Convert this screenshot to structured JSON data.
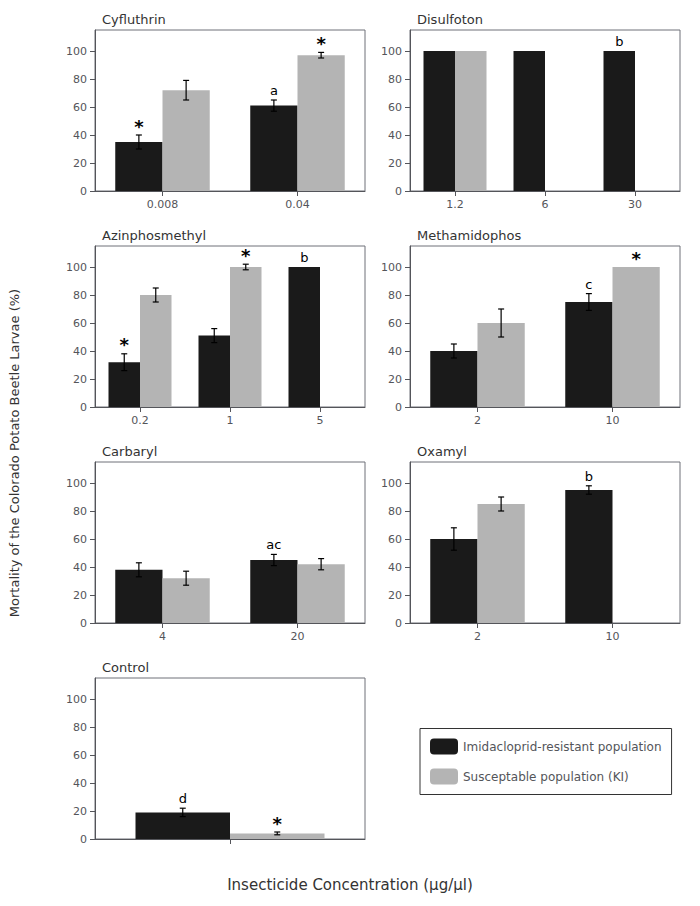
{
  "chart_data": [
    {
      "type": "bar",
      "title": "Cyfluthrin",
      "categories": [
        "0.008",
        "0.04"
      ],
      "series": [
        {
          "name": "Imidacloprid-resistant population",
          "color": "#1a1a1a",
          "values": [
            35,
            61
          ],
          "errors": [
            5,
            4
          ]
        },
        {
          "name": "Susceptable population (KI)",
          "color": "#b4b4b4",
          "values": [
            72,
            97
          ],
          "errors": [
            7,
            2
          ]
        }
      ],
      "annotations": [
        {
          "text": "*",
          "category": "0.008",
          "series": "Imidacloprid-resistant population"
        },
        {
          "text": "*",
          "category": "0.04",
          "series": "Susceptable population (KI)"
        },
        {
          "text": "a",
          "category": "0.04",
          "series": "Imidacloprid-resistant population"
        }
      ],
      "ylim": [
        0,
        115
      ],
      "yticks": [
        0,
        20,
        40,
        60,
        80,
        100
      ],
      "grid": false
    },
    {
      "type": "bar",
      "title": "Disulfoton",
      "categories": [
        "1.2",
        "6",
        "30"
      ],
      "series": [
        {
          "name": "Imidacloprid-resistant population",
          "color": "#1a1a1a",
          "values": [
            100,
            100,
            100
          ],
          "errors": [
            0,
            0,
            0
          ]
        },
        {
          "name": "Susceptable population (KI)",
          "color": "#b4b4b4",
          "values": [
            100,
            null,
            null
          ],
          "errors": [
            0,
            null,
            null
          ]
        }
      ],
      "annotations": [
        {
          "text": "b",
          "category": "30",
          "series": "Imidacloprid-resistant population"
        }
      ],
      "ylim": [
        0,
        115
      ],
      "yticks": [
        0,
        20,
        40,
        60,
        80,
        100
      ],
      "grid": false
    },
    {
      "type": "bar",
      "title": "Azinphosmethyl",
      "categories": [
        "0.2",
        "1",
        "5"
      ],
      "series": [
        {
          "name": "Imidacloprid-resistant population",
          "color": "#1a1a1a",
          "values": [
            32,
            51,
            100
          ],
          "errors": [
            6,
            5,
            0
          ]
        },
        {
          "name": "Susceptable population (KI)",
          "color": "#b4b4b4",
          "values": [
            80,
            100,
            null
          ],
          "errors": [
            5,
            2,
            null
          ]
        }
      ],
      "annotations": [
        {
          "text": "*",
          "category": "0.2",
          "series": "Imidacloprid-resistant population"
        },
        {
          "text": "*",
          "category": "1",
          "series": "Susceptable population (KI)"
        },
        {
          "text": "b",
          "category": "5",
          "series": "Imidacloprid-resistant population"
        }
      ],
      "ylim": [
        0,
        115
      ],
      "yticks": [
        0,
        20,
        40,
        60,
        80,
        100
      ],
      "grid": false
    },
    {
      "type": "bar",
      "title": "Methamidophos",
      "categories": [
        "2",
        "10"
      ],
      "series": [
        {
          "name": "Imidacloprid-resistant population",
          "color": "#1a1a1a",
          "values": [
            40,
            75
          ],
          "errors": [
            5,
            6
          ]
        },
        {
          "name": "Susceptable population (KI)",
          "color": "#b4b4b4",
          "values": [
            60,
            100
          ],
          "errors": [
            10,
            0
          ]
        }
      ],
      "annotations": [
        {
          "text": "*",
          "category": "10",
          "series": "Susceptable population (KI)"
        },
        {
          "text": "c",
          "category": "10",
          "series": "Imidacloprid-resistant population"
        }
      ],
      "ylim": [
        0,
        115
      ],
      "yticks": [
        0,
        20,
        40,
        60,
        80,
        100
      ],
      "grid": false
    },
    {
      "type": "bar",
      "title": "Carbaryl",
      "categories": [
        "4",
        "20"
      ],
      "series": [
        {
          "name": "Imidacloprid-resistant population",
          "color": "#1a1a1a",
          "values": [
            38,
            45
          ],
          "errors": [
            5,
            4
          ]
        },
        {
          "name": "Susceptable population (KI)",
          "color": "#b4b4b4",
          "values": [
            32,
            42
          ],
          "errors": [
            5,
            4
          ]
        }
      ],
      "annotations": [
        {
          "text": "ac",
          "category": "20",
          "series": "Imidacloprid-resistant population"
        }
      ],
      "ylim": [
        0,
        115
      ],
      "yticks": [
        0,
        20,
        40,
        60,
        80,
        100
      ],
      "grid": false
    },
    {
      "type": "bar",
      "title": "Oxamyl",
      "categories": [
        "2",
        "10"
      ],
      "series": [
        {
          "name": "Imidacloprid-resistant population",
          "color": "#1a1a1a",
          "values": [
            60,
            95
          ],
          "errors": [
            8,
            3
          ]
        },
        {
          "name": "Susceptable population (KI)",
          "color": "#b4b4b4",
          "values": [
            85,
            null
          ],
          "errors": [
            5,
            null
          ]
        }
      ],
      "annotations": [
        {
          "text": "b",
          "category": "10",
          "series": "Imidacloprid-resistant population"
        }
      ],
      "ylim": [
        0,
        115
      ],
      "yticks": [
        0,
        20,
        40,
        60,
        80,
        100
      ],
      "grid": false
    },
    {
      "type": "bar",
      "title": "Control",
      "categories": [
        null
      ],
      "series": [
        {
          "name": "Imidacloprid-resistant population",
          "color": "#1a1a1a",
          "values": [
            19
          ],
          "errors": [
            3
          ]
        },
        {
          "name": "Susceptable population (KI)",
          "color": "#b4b4b4",
          "values": [
            4
          ],
          "errors": [
            1
          ]
        }
      ],
      "annotations": [
        {
          "text": "d",
          "category": null,
          "series": "Imidacloprid-resistant population"
        },
        {
          "text": "*",
          "category": null,
          "series": "Susceptable population (KI)"
        }
      ],
      "ylim": [
        0,
        115
      ],
      "yticks": [
        0,
        20,
        40,
        60,
        80,
        100
      ],
      "grid": false
    }
  ],
  "ylabel": "Mortality of the Colorado Potato Beetle Larvae (%)",
  "xlabel": "Insecticide Concentration (μg/μl)",
  "legend": "lower right"
}
